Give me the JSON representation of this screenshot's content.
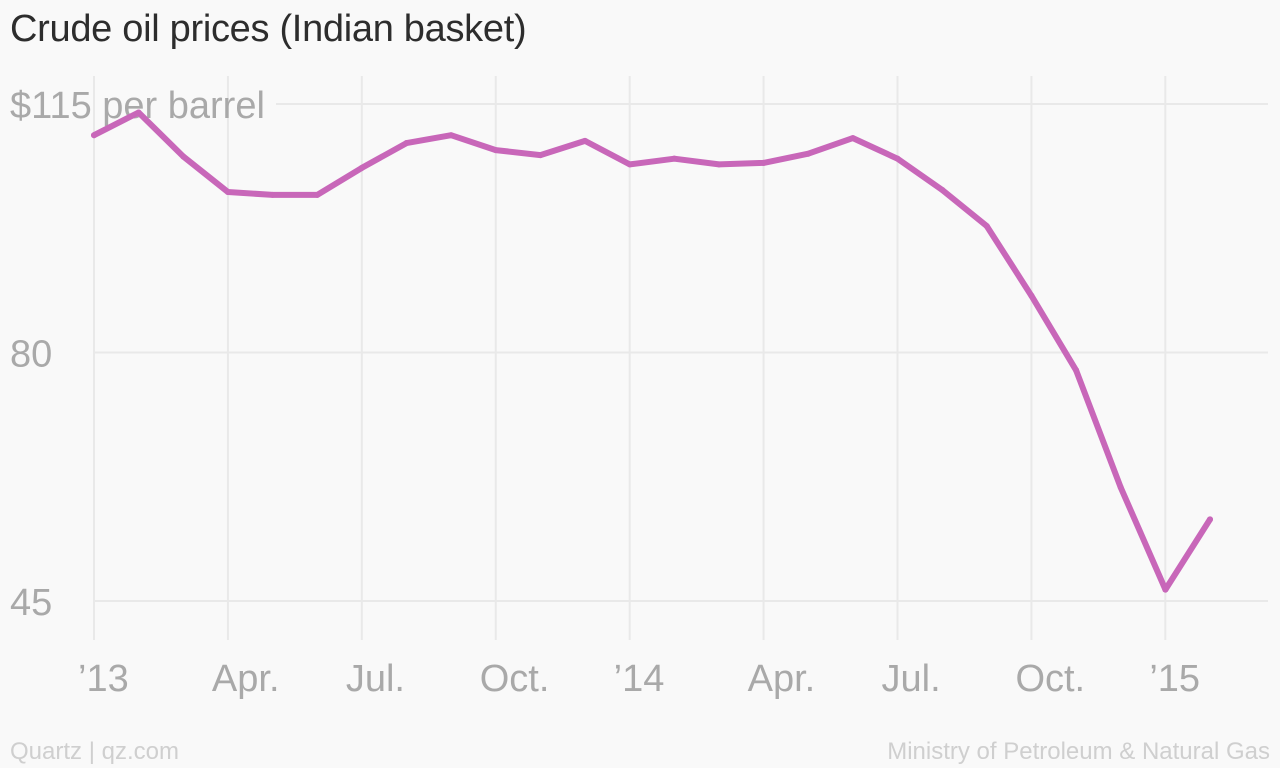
{
  "chart_data": {
    "type": "line",
    "title": "Crude oil prices (Indian basket)",
    "ylabel": "$115 per barrel",
    "xlabel": "",
    "ylim": [
      45,
      115
    ],
    "y_ticks": [
      {
        "value": 115,
        "label": "$115 per barrel"
      },
      {
        "value": 80,
        "label": "80"
      },
      {
        "value": 45,
        "label": "45"
      }
    ],
    "x_ticks": [
      {
        "date": "2013-01",
        "label": "’13"
      },
      {
        "date": "2013-04",
        "label": "Apr."
      },
      {
        "date": "2013-07",
        "label": "Jul."
      },
      {
        "date": "2013-10",
        "label": "Oct."
      },
      {
        "date": "2014-01",
        "label": "’14"
      },
      {
        "date": "2014-04",
        "label": "Apr."
      },
      {
        "date": "2014-07",
        "label": "Jul."
      },
      {
        "date": "2014-10",
        "label": "Oct."
      },
      {
        "date": "2015-01",
        "label": "’15"
      }
    ],
    "grid": true,
    "series": [
      {
        "name": "",
        "color": "#c867b9",
        "points": [
          {
            "x": "2013-01",
            "y": 110.6
          },
          {
            "x": "2013-02",
            "y": 113.8
          },
          {
            "x": "2013-03",
            "y": 107.6
          },
          {
            "x": "2013-04",
            "y": 102.6
          },
          {
            "x": "2013-05",
            "y": 102.2
          },
          {
            "x": "2013-06",
            "y": 102.2
          },
          {
            "x": "2013-07",
            "y": 106.0
          },
          {
            "x": "2013-08",
            "y": 109.5
          },
          {
            "x": "2013-09",
            "y": 110.6
          },
          {
            "x": "2013-10",
            "y": 108.5
          },
          {
            "x": "2013-11",
            "y": 107.8
          },
          {
            "x": "2013-12",
            "y": 109.8
          },
          {
            "x": "2014-01",
            "y": 106.5
          },
          {
            "x": "2014-02",
            "y": 107.3
          },
          {
            "x": "2014-03",
            "y": 106.5
          },
          {
            "x": "2014-04",
            "y": 106.7
          },
          {
            "x": "2014-05",
            "y": 108.0
          },
          {
            "x": "2014-06",
            "y": 110.2
          },
          {
            "x": "2014-07",
            "y": 107.3
          },
          {
            "x": "2014-08",
            "y": 102.9
          },
          {
            "x": "2014-09",
            "y": 97.8
          },
          {
            "x": "2014-10",
            "y": 88.0
          },
          {
            "x": "2014-11",
            "y": 77.5
          },
          {
            "x": "2014-12",
            "y": 61.0
          },
          {
            "x": "2015-01",
            "y": 46.6
          },
          {
            "x": "2015-02",
            "y": 56.5
          }
        ]
      }
    ]
  },
  "footer": {
    "left": "Quartz | qz.com",
    "right": "Ministry of Petroleum & Natural Gas"
  }
}
